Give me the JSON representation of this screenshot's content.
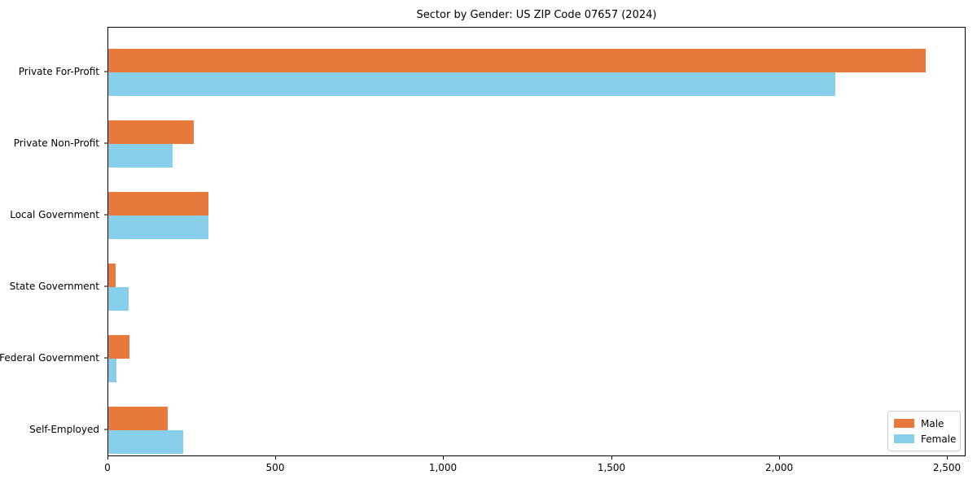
{
  "chart_data": {
    "type": "bar",
    "orientation": "horizontal",
    "title": "Sector by Gender: US ZIP Code 07657 (2024)",
    "categories": [
      "Private For-Profit",
      "Private Non-Profit",
      "Local Government",
      "State Government",
      "Federal Government",
      "Self-Employed"
    ],
    "series": [
      {
        "name": "Male",
        "color": "#e8793d",
        "values": [
          2434,
          255,
          298,
          22,
          64,
          177
        ]
      },
      {
        "name": "Female",
        "color": "#87ceeb",
        "values": [
          2165,
          192,
          298,
          60,
          24,
          223
        ]
      }
    ],
    "xlabel": "",
    "ylabel": "",
    "xlim": [
      0,
      2556
    ],
    "xticks": {
      "values": [
        0,
        500,
        1000,
        1500,
        2000,
        2500
      ],
      "labels": [
        "0",
        "500",
        "1,000",
        "1,500",
        "2,000",
        "2,500"
      ]
    },
    "grid": false,
    "legend": {
      "position": "lower right",
      "entries": [
        "Male",
        "Female"
      ]
    }
  }
}
